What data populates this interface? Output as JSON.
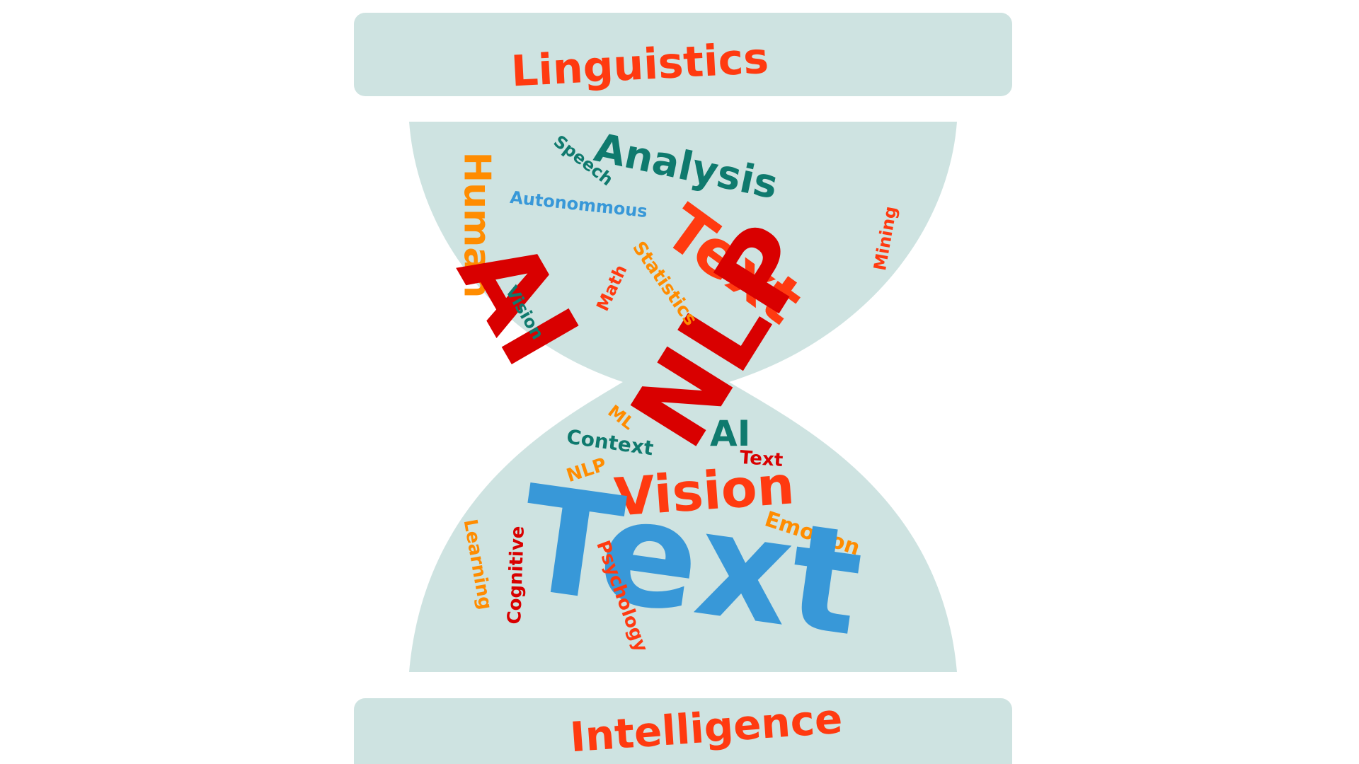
{
  "top_label": "Linguistics",
  "bottom_label": "Intelligence",
  "colors": {
    "panel": "#cee3e1",
    "red": "#d90000",
    "orange": "#ff8c00",
    "red_orange": "#ff3a10",
    "teal": "#0f7a6e",
    "blue": "#3898d8"
  },
  "words": {
    "human": "Human",
    "speech": "Speech",
    "analysis": "Analysis",
    "autonommous": "Autonommous",
    "text_top": "Text",
    "ai_big": "AI",
    "nlp_big": "NLP",
    "mining": "Mining",
    "statistics": "Statistics",
    "math": "Math",
    "vision_small": "Vision",
    "ml": "ML",
    "context": "Context",
    "ai_small": "AI",
    "text_small": "Text",
    "nlp_small": "NLP",
    "vision_mid": "Vision",
    "emotion": "Emotion",
    "text_big": "Text",
    "learning": "Learning",
    "cognitive": "Cognitive",
    "psychology": "Psychology"
  }
}
